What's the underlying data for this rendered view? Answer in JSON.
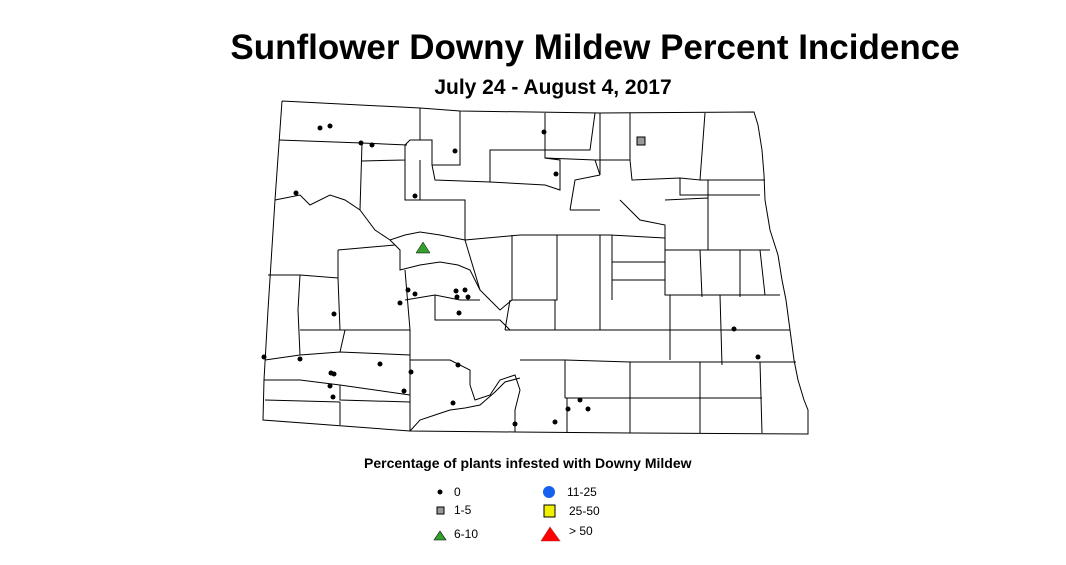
{
  "title": "Sunflower Downy Mildew Percent Incidence",
  "subtitle": "July 24 - August 4, 2017",
  "legend": {
    "title": "Percentage of plants infested with Downy Mildew",
    "items": [
      {
        "label": "0",
        "symbol": "small-dot",
        "color": "#000000"
      },
      {
        "label": "1-5",
        "symbol": "square",
        "color": "#999999"
      },
      {
        "label": "6-10",
        "symbol": "triangle",
        "color": "#33a02c"
      },
      {
        "label": "11-25",
        "symbol": "circle",
        "color": "#1560f0"
      },
      {
        "label": "25-50",
        "symbol": "square",
        "color": "#f0f000"
      },
      {
        "label": "> 50",
        "symbol": "triangle",
        "color": "#ff0000"
      }
    ]
  },
  "observation_counts": {
    "0": 36,
    "1-5": 1,
    "6-10": 1,
    "11-25": 0,
    "25-50": 0,
    "> 50": 0
  }
}
